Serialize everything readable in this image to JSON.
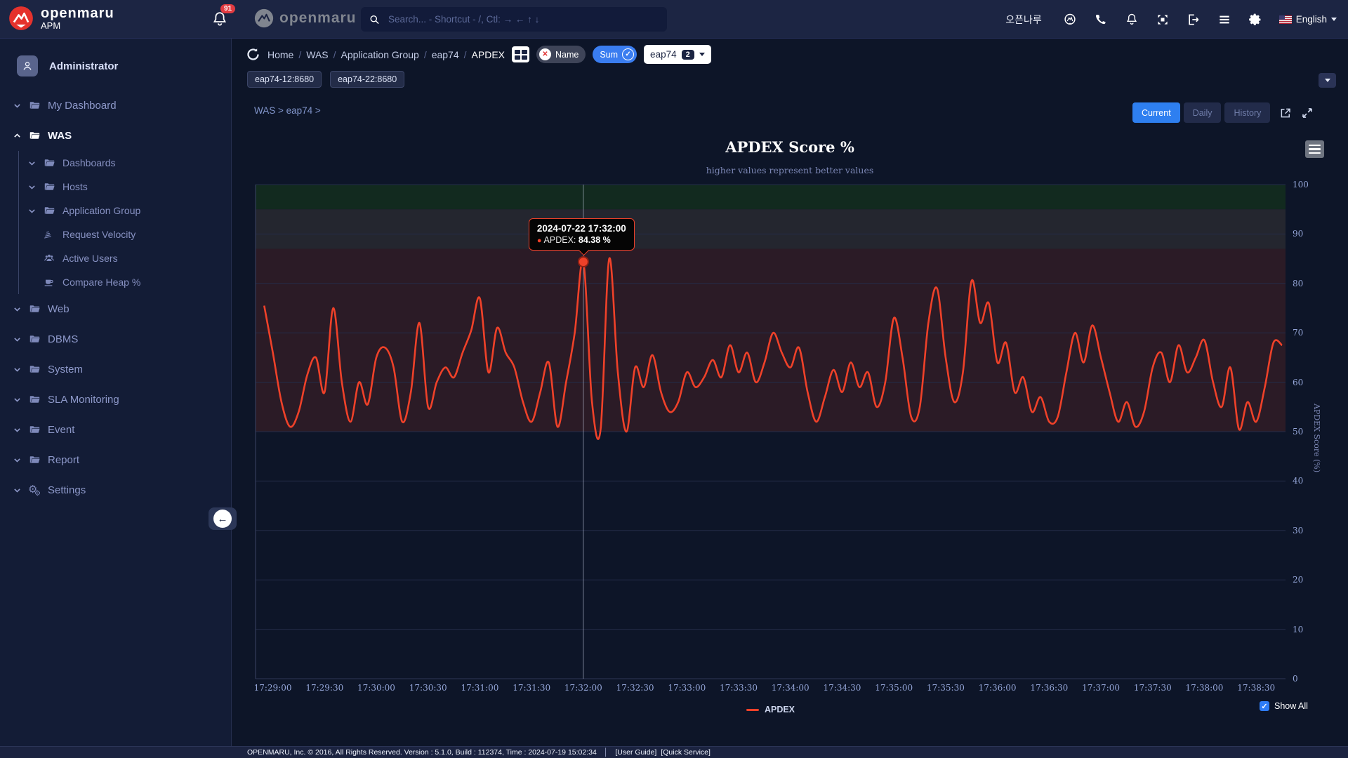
{
  "header": {
    "logo_title": "openmaru",
    "logo_subtitle": "APM",
    "notification_count": "91",
    "brand_secondary": "openmaru",
    "search": {
      "placeholder": "Search... - Shortcut - /, Ctl: → ← ↑ ↓"
    },
    "user_name": "오픈나루",
    "language": "English"
  },
  "sidebar": {
    "profile_name": "Administrator",
    "items": [
      {
        "label": "My Dashboard",
        "icon": "folder",
        "chevron": "down",
        "level": 0
      },
      {
        "label": "WAS",
        "icon": "folder-open",
        "chevron": "up",
        "level": 0,
        "active": true
      },
      {
        "label": "Dashboards",
        "icon": "folder",
        "chevron": "down",
        "level": 1
      },
      {
        "label": "Hosts",
        "icon": "folder",
        "chevron": "down",
        "level": 1
      },
      {
        "label": "Application Group",
        "icon": "folder",
        "chevron": "down",
        "level": 1
      },
      {
        "label": "Request Velocity",
        "icon": "velocity",
        "chevron": null,
        "level": 1
      },
      {
        "label": "Active Users",
        "icon": "users",
        "chevron": null,
        "level": 1
      },
      {
        "label": "Compare Heap %",
        "icon": "heap",
        "chevron": null,
        "level": 1
      },
      {
        "label": "Web",
        "icon": "folder",
        "chevron": "down",
        "level": 0
      },
      {
        "label": "DBMS",
        "icon": "folder",
        "chevron": "down",
        "level": 0
      },
      {
        "label": "System",
        "icon": "folder",
        "chevron": "down",
        "level": 0
      },
      {
        "label": "SLA Monitoring",
        "icon": "folder",
        "chevron": "down",
        "level": 0
      },
      {
        "label": "Event",
        "icon": "folder",
        "chevron": "down",
        "level": 0
      },
      {
        "label": "Report",
        "icon": "folder",
        "chevron": "down",
        "level": 0
      },
      {
        "label": "Settings",
        "icon": "gears",
        "chevron": "down",
        "level": 0
      }
    ]
  },
  "toolbar": {
    "breadcrumb": [
      "Home",
      "WAS",
      "Application Group",
      "eap74",
      "APDEX"
    ],
    "filter_name_label": "Name",
    "filter_sum_label": "Sum",
    "group_select": {
      "label": "eap74",
      "count": "2"
    },
    "instance_chips": [
      "eap74-12:8680",
      "eap74-22:8680"
    ]
  },
  "panel": {
    "path_label": "WAS > eap74 >",
    "range_buttons": [
      "Current",
      "Daily",
      "History"
    ],
    "active_range": "Current"
  },
  "chart_data": {
    "type": "line",
    "title": "APDEX Score %",
    "subtitle": "higher values represent better values",
    "y_axis_title": "APDEX Score (%)",
    "ylim": [
      0,
      100
    ],
    "y_ticks": [
      0,
      10,
      20,
      30,
      40,
      50,
      60,
      70,
      80,
      90,
      100
    ],
    "x_ticks": [
      "17:29:00",
      "17:29:30",
      "17:30:00",
      "17:30:30",
      "17:31:00",
      "17:31:30",
      "17:32:00",
      "17:32:30",
      "17:33:00",
      "17:33:30",
      "17:34:00",
      "17:34:30",
      "17:35:00",
      "17:35:30",
      "17:36:00",
      "17:36:30",
      "17:37:00",
      "17:37:30",
      "17:38:00",
      "17:38:30"
    ],
    "bands": [
      {
        "from": 95,
        "to": 100,
        "color": "#122a1f"
      },
      {
        "from": 87,
        "to": 95,
        "color": "#24262f"
      },
      {
        "from": 50,
        "to": 87,
        "color": "#2b1b26"
      }
    ],
    "series": [
      {
        "name": "APDEX",
        "color": "#ef4129",
        "start_time": "17:28:55",
        "interval_seconds": 5,
        "values": [
          75.5,
          66,
          56,
          51,
          54,
          61.5,
          65,
          58,
          75,
          60,
          52,
          60,
          55.5,
          65,
          67,
          63,
          52,
          58,
          72,
          55,
          60,
          63,
          61,
          66,
          70.5,
          77,
          62,
          71,
          66,
          63,
          56,
          52,
          58,
          64,
          51,
          60,
          70,
          84.38,
          56,
          50.5,
          85,
          62,
          50,
          63,
          59,
          65.5,
          58,
          54,
          56,
          62,
          59,
          61,
          64.5,
          61,
          67.5,
          62,
          66,
          60,
          64,
          70,
          66,
          63,
          67,
          58,
          52,
          57,
          62.5,
          58,
          64,
          59,
          62,
          55,
          60,
          73,
          65,
          53,
          55,
          72,
          79,
          65,
          56,
          62,
          80.5,
          72,
          76,
          64,
          68,
          58,
          61,
          54,
          57,
          52,
          53,
          62,
          70,
          64,
          71.5,
          65,
          58,
          52,
          56,
          51,
          54,
          63,
          66,
          60,
          67.5,
          62,
          65,
          68.5,
          60,
          55,
          63,
          50.5,
          56,
          52,
          59,
          68,
          67.5
        ]
      }
    ],
    "tooltip": {
      "title": "2024-07-22 17:32:00",
      "label": "APDEX:",
      "value": "84.38 %",
      "index": 37
    },
    "legend": [
      "APDEX"
    ],
    "show_all_label": "Show All"
  },
  "footer": {
    "text": "OPENMARU, Inc. © 2016, All Rights Reserved.  Version : 5.1.0, Build : 112374, Time : 2024-07-19 15:02:34",
    "links": [
      "[User Guide]",
      "[Quick Service]"
    ]
  }
}
